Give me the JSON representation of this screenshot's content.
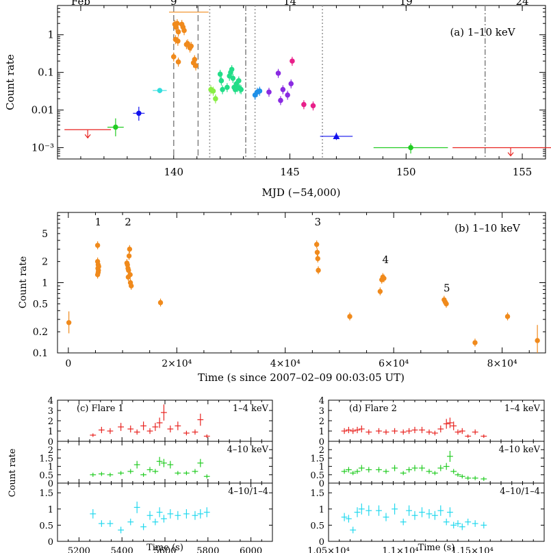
{
  "chart_data": [
    {
      "id": "a",
      "type": "scatter",
      "annotation": "(a) 1–10 keV",
      "xlabel": "MJD (−54,000)",
      "ylabel": "Count rate",
      "y_scale": "log",
      "xlim": [
        135,
        156
      ],
      "ylim": [
        0.0005,
        6
      ],
      "x_ticks": [
        {
          "v": 140,
          "label": "140"
        },
        {
          "v": 145,
          "label": "145"
        },
        {
          "v": 150,
          "label": "150"
        },
        {
          "v": 155,
          "label": "155"
        }
      ],
      "y_ticks": [
        {
          "v": 0.001,
          "label": "10⁻³"
        },
        {
          "v": 0.01,
          "label": "0.01"
        },
        {
          "v": 0.1,
          "label": "0.1"
        },
        {
          "v": 1,
          "label": "1"
        }
      ],
      "top_axis_labels": [
        {
          "v": 136.0,
          "label": "Feb"
        },
        {
          "v": 140.0,
          "label": "9"
        },
        {
          "v": 145.0,
          "label": "14"
        },
        {
          "v": 150.0,
          "label": "19"
        },
        {
          "v": 155.0,
          "label": "24"
        }
      ],
      "vlines": [
        {
          "x": 140.0,
          "style": "dashed"
        },
        {
          "x": 141.05,
          "style": "dashed"
        },
        {
          "x": 141.55,
          "style": "dotted"
        },
        {
          "x": 143.1,
          "style": "dashdot"
        },
        {
          "x": 143.5,
          "style": "dotted"
        },
        {
          "x": 146.4,
          "style": "dotted"
        },
        {
          "x": 153.4,
          "style": "dashdot"
        }
      ],
      "series": [
        {
          "color": "#e8231f",
          "points": [
            {
              "x": 136.3,
              "y": 0.003,
              "xerr": 1.0,
              "upper": true
            }
          ]
        },
        {
          "color": "#22cc22",
          "points": [
            {
              "x": 137.5,
              "y": 0.0035,
              "xerr": 0.35,
              "yerr_lo": 0.0015,
              "yerr_hi": 0.0025
            }
          ]
        },
        {
          "color": "#1010ee",
          "points": [
            {
              "x": 138.5,
              "y": 0.0082,
              "xerr": 0.25,
              "yerr_lo": 0.003,
              "yerr_hi": 0.004
            }
          ]
        },
        {
          "color": "#33dddd",
          "points": [
            {
              "x": 139.4,
              "y": 0.033,
              "xerr": 0.3,
              "yerr_lo": 0.005,
              "yerr_hi": 0.005
            }
          ]
        },
        {
          "color": "#f08a1c",
          "hbar": {
            "x1": 139.8,
            "x2": 141.5,
            "y": 4.0
          },
          "points": [
            {
              "x": 140.05,
              "y": 1.9
            },
            {
              "x": 140.1,
              "y": 1.6
            },
            {
              "x": 140.15,
              "y": 2.0
            },
            {
              "x": 140.2,
              "y": 1.2
            },
            {
              "x": 140.08,
              "y": 0.75
            },
            {
              "x": 140.18,
              "y": 0.68
            },
            {
              "x": 140.35,
              "y": 1.9
            },
            {
              "x": 140.4,
              "y": 1.6
            },
            {
              "x": 140.45,
              "y": 1.3
            },
            {
              "x": 140.0,
              "y": 0.26
            },
            {
              "x": 140.2,
              "y": 0.19
            },
            {
              "x": 140.55,
              "y": 0.55
            },
            {
              "x": 140.6,
              "y": 0.58
            },
            {
              "x": 140.7,
              "y": 0.45
            },
            {
              "x": 140.75,
              "y": 0.5
            },
            {
              "x": 140.85,
              "y": 0.18
            },
            {
              "x": 140.9,
              "y": 0.22
            },
            {
              "x": 140.95,
              "y": 0.15
            }
          ]
        },
        {
          "color": "#88ee44",
          "points": [
            {
              "x": 141.6,
              "y": 0.035
            },
            {
              "x": 141.7,
              "y": 0.032
            },
            {
              "x": 141.8,
              "y": 0.02
            }
          ]
        },
        {
          "color": "#22dd88",
          "points": [
            {
              "x": 142.0,
              "y": 0.09
            },
            {
              "x": 142.05,
              "y": 0.06
            },
            {
              "x": 142.1,
              "y": 0.035
            },
            {
              "x": 142.3,
              "y": 0.04
            },
            {
              "x": 142.4,
              "y": 0.08
            },
            {
              "x": 142.45,
              "y": 0.1
            },
            {
              "x": 142.5,
              "y": 0.12
            },
            {
              "x": 142.55,
              "y": 0.07
            },
            {
              "x": 142.6,
              "y": 0.04
            },
            {
              "x": 142.65,
              "y": 0.035
            },
            {
              "x": 142.7,
              "y": 0.05
            },
            {
              "x": 142.75,
              "y": 0.04
            },
            {
              "x": 142.8,
              "y": 0.06
            },
            {
              "x": 142.85,
              "y": 0.037
            },
            {
              "x": 142.9,
              "y": 0.035
            }
          ]
        },
        {
          "color": "#1e90e8",
          "points": [
            {
              "x": 143.5,
              "y": 0.025
            },
            {
              "x": 143.6,
              "y": 0.03
            },
            {
              "x": 143.7,
              "y": 0.032
            }
          ]
        },
        {
          "color": "#8a2be2",
          "points": [
            {
              "x": 144.1,
              "y": 0.03
            },
            {
              "x": 144.5,
              "y": 0.095
            },
            {
              "x": 144.6,
              "y": 0.018
            },
            {
              "x": 144.7,
              "y": 0.035
            },
            {
              "x": 144.9,
              "y": 0.025
            },
            {
              "x": 145.05,
              "y": 0.05
            }
          ]
        },
        {
          "color": "#e8208a",
          "points": [
            {
              "x": 145.1,
              "y": 0.2
            },
            {
              "x": 145.6,
              "y": 0.014
            },
            {
              "x": 146.0,
              "y": 0.013
            }
          ]
        },
        {
          "color": "#1010ee",
          "points": [
            {
              "x": 147.0,
              "y": 0.002,
              "xerr": 0.7,
              "yerr_lo": 0.0004,
              "yerr_hi": 0.0005,
              "marker": "triangle"
            }
          ]
        },
        {
          "color": "#22cc22",
          "points": [
            {
              "x": 150.2,
              "y": 0.001,
              "xerr": 1.6,
              "yerr_lo": 0.0003,
              "yerr_hi": 0.0003
            }
          ]
        },
        {
          "color": "#e8231f",
          "points": [
            {
              "x": 154.5,
              "y": 0.001,
              "xerr": 2.5,
              "upper": true
            }
          ]
        }
      ]
    },
    {
      "id": "b",
      "type": "scatter",
      "annotation": "(b) 1–10 keV",
      "xlabel": "Time (s since 2007–02–09 00:03:05 UT)",
      "ylabel": "Count rate",
      "y_scale": "log",
      "xlim": [
        -2000,
        88000
      ],
      "ylim": [
        0.1,
        10
      ],
      "x_ticks": [
        {
          "v": 0,
          "label": "0"
        },
        {
          "v": 20000,
          "label": "2×10⁴"
        },
        {
          "v": 40000,
          "label": "4×10⁴"
        },
        {
          "v": 60000,
          "label": "6×10⁴"
        },
        {
          "v": 80000,
          "label": "8×10⁴"
        }
      ],
      "y_ticks": [
        {
          "v": 0.1,
          "label": "0.1"
        },
        {
          "v": 0.2,
          "label": "0.2"
        },
        {
          "v": 0.5,
          "label": "0.5"
        },
        {
          "v": 1,
          "label": "1"
        },
        {
          "v": 2,
          "label": "2"
        },
        {
          "v": 5,
          "label": "5"
        }
      ],
      "flare_labels": [
        {
          "x": 5500,
          "y": 6.5,
          "label": "1"
        },
        {
          "x": 11000,
          "y": 6.5,
          "label": "2"
        },
        {
          "x": 46000,
          "y": 6.5,
          "label": "3"
        },
        {
          "x": 58500,
          "y": 1.9,
          "label": "4"
        },
        {
          "x": 69800,
          "y": 0.75,
          "label": "5"
        }
      ],
      "series": [
        {
          "color": "#f08a1c",
          "points": [
            {
              "x": 100,
              "y": 0.27,
              "yerr_lo": 0.08,
              "yerr_hi": 0.12
            },
            {
              "x": 5400,
              "y": 3.4
            },
            {
              "x": 5400,
              "y": 2.0
            },
            {
              "x": 5500,
              "y": 1.8
            },
            {
              "x": 5450,
              "y": 1.6
            },
            {
              "x": 5550,
              "y": 1.5
            },
            {
              "x": 5600,
              "y": 1.7
            },
            {
              "x": 5500,
              "y": 1.4
            },
            {
              "x": 5400,
              "y": 1.3
            },
            {
              "x": 10800,
              "y": 1.9
            },
            {
              "x": 10900,
              "y": 1.8
            },
            {
              "x": 11000,
              "y": 1.6
            },
            {
              "x": 11100,
              "y": 1.5
            },
            {
              "x": 11200,
              "y": 2.4
            },
            {
              "x": 11300,
              "y": 3.0
            },
            {
              "x": 11400,
              "y": 1.3
            },
            {
              "x": 11450,
              "y": 1.0
            },
            {
              "x": 11600,
              "y": 0.9
            },
            {
              "x": 11050,
              "y": 1.2
            },
            {
              "x": 17000,
              "y": 0.52
            },
            {
              "x": 45800,
              "y": 3.5
            },
            {
              "x": 45900,
              "y": 2.7
            },
            {
              "x": 46000,
              "y": 2.2
            },
            {
              "x": 46100,
              "y": 1.5
            },
            {
              "x": 51900,
              "y": 0.33
            },
            {
              "x": 57500,
              "y": 0.75
            },
            {
              "x": 57800,
              "y": 1.1
            },
            {
              "x": 58000,
              "y": 1.2
            },
            {
              "x": 58200,
              "y": 1.15
            },
            {
              "x": 69300,
              "y": 0.57
            },
            {
              "x": 69500,
              "y": 0.53
            },
            {
              "x": 69700,
              "y": 0.5
            },
            {
              "x": 75000,
              "y": 0.14
            },
            {
              "x": 81000,
              "y": 0.33
            },
            {
              "x": 86500,
              "y": 0.15,
              "yerr_lo": 0.05,
              "yerr_hi": 0.1
            }
          ]
        }
      ]
    },
    {
      "id": "c",
      "type": "scatter",
      "title": "(c) Flare 1",
      "xlabel": "Time (s)",
      "ylabel": "Count rate",
      "xlim": [
        5100,
        6100
      ],
      "x_ticks": [
        {
          "v": 5200,
          "label": "5200"
        },
        {
          "v": 5400,
          "label": "5400"
        },
        {
          "v": 5600,
          "label": "5600"
        },
        {
          "v": 5800,
          "label": "5800"
        },
        {
          "v": 6000,
          "label": "6000"
        }
      ],
      "rows": [
        {
          "label": "1–4 keV",
          "color": "#e8231f",
          "ylim": [
            0,
            4
          ],
          "y_ticks": [
            0,
            1,
            2,
            3,
            4
          ],
          "x": [
            5265,
            5305,
            5345,
            5395,
            5440,
            5470,
            5500,
            5530,
            5555,
            5575,
            5595,
            5625,
            5660,
            5700,
            5740,
            5765,
            5795
          ],
          "y": [
            0.6,
            1.1,
            1.0,
            1.4,
            1.2,
            0.9,
            1.5,
            1.0,
            1.4,
            1.8,
            2.8,
            1.2,
            1.5,
            0.8,
            0.9,
            2.1,
            0.5
          ]
        },
        {
          "label": "4–10 keV",
          "color": "#22cc22",
          "ylim": [
            0,
            2.5
          ],
          "y_ticks": [
            0,
            0.5,
            1,
            1.5,
            2
          ],
          "x": [
            5265,
            5305,
            5345,
            5395,
            5440,
            5470,
            5500,
            5530,
            5555,
            5575,
            5595,
            5625,
            5660,
            5700,
            5740,
            5765,
            5795
          ],
          "y": [
            0.5,
            0.55,
            0.5,
            0.6,
            0.7,
            1.1,
            0.5,
            0.8,
            0.7,
            1.3,
            1.2,
            1.1,
            0.6,
            0.6,
            0.7,
            1.2,
            0.4
          ]
        },
        {
          "label": "4–10/1–4",
          "color": "#22d8ee",
          "ylim": [
            0,
            1.8
          ],
          "y_ticks": [
            0,
            0.5,
            1,
            1.5
          ],
          "x": [
            5265,
            5305,
            5345,
            5395,
            5440,
            5470,
            5500,
            5530,
            5555,
            5575,
            5595,
            5625,
            5660,
            5700,
            5740,
            5765,
            5795
          ],
          "y": [
            0.85,
            0.55,
            0.55,
            0.35,
            0.6,
            1.05,
            0.45,
            0.8,
            0.6,
            0.9,
            0.7,
            0.85,
            0.8,
            0.85,
            0.8,
            0.85,
            0.9
          ]
        }
      ]
    },
    {
      "id": "d",
      "type": "scatter",
      "title": "(d) Flare 2",
      "xlabel": "Time (s)",
      "ylabel": "",
      "xlim": [
        10500,
        12000
      ],
      "x_ticks": [
        {
          "v": 10500,
          "label": "1.05×10⁴"
        },
        {
          "v": 11000,
          "label": "1.1×10⁴"
        },
        {
          "v": 11500,
          "label": "1.15×10⁴"
        }
      ],
      "rows": [
        {
          "label": "1–4 keV",
          "color": "#e8231f",
          "ylim": [
            0,
            4
          ],
          "y_ticks": [
            0,
            1,
            2,
            3,
            4
          ],
          "x": [
            10610,
            10640,
            10670,
            10700,
            10730,
            10780,
            10850,
            10900,
            10960,
            11020,
            11060,
            11100,
            11150,
            11200,
            11240,
            11280,
            11320,
            11345,
            11370,
            11400,
            11430,
            11470,
            11520,
            11580
          ],
          "y": [
            1.0,
            1.1,
            1.0,
            1.1,
            1.2,
            0.9,
            1.0,
            0.9,
            1.0,
            0.9,
            1.0,
            1.1,
            1.1,
            0.9,
            0.8,
            1.2,
            1.7,
            1.8,
            1.5,
            0.9,
            1.0,
            0.5,
            0.9,
            0.5
          ]
        },
        {
          "label": "4–10 keV",
          "color": "#22cc22",
          "ylim": [
            0,
            2.5
          ],
          "y_ticks": [
            0,
            0.5,
            1,
            1.5,
            2
          ],
          "x": [
            10610,
            10640,
            10670,
            10700,
            10730,
            10780,
            10850,
            10900,
            10960,
            11020,
            11060,
            11100,
            11150,
            11200,
            11240,
            11280,
            11320,
            11345,
            11370,
            11400,
            11430,
            11470,
            11520,
            11580
          ],
          "y": [
            0.7,
            0.8,
            0.6,
            0.7,
            0.9,
            0.8,
            0.8,
            0.7,
            0.9,
            0.6,
            0.8,
            0.9,
            0.9,
            0.7,
            0.6,
            0.9,
            1.0,
            1.6,
            0.7,
            0.5,
            0.4,
            0.3,
            0.3,
            0.25
          ]
        },
        {
          "label": "4–10/1–4",
          "color": "#22d8ee",
          "ylim": [
            0,
            1.8
          ],
          "y_ticks": [
            0,
            0.5,
            1,
            1.5
          ],
          "x": [
            10610,
            10640,
            10670,
            10700,
            10730,
            10780,
            10850,
            10900,
            10960,
            11020,
            11060,
            11100,
            11150,
            11200,
            11240,
            11280,
            11320,
            11345,
            11370,
            11400,
            11430,
            11470,
            11520,
            11580
          ],
          "y": [
            0.75,
            0.7,
            0.35,
            0.9,
            1.0,
            0.95,
            0.95,
            0.75,
            1.0,
            0.6,
            0.95,
            0.8,
            0.9,
            0.85,
            0.8,
            0.95,
            0.6,
            0.9,
            0.5,
            0.55,
            0.45,
            0.6,
            0.55,
            0.5
          ]
        }
      ]
    }
  ]
}
